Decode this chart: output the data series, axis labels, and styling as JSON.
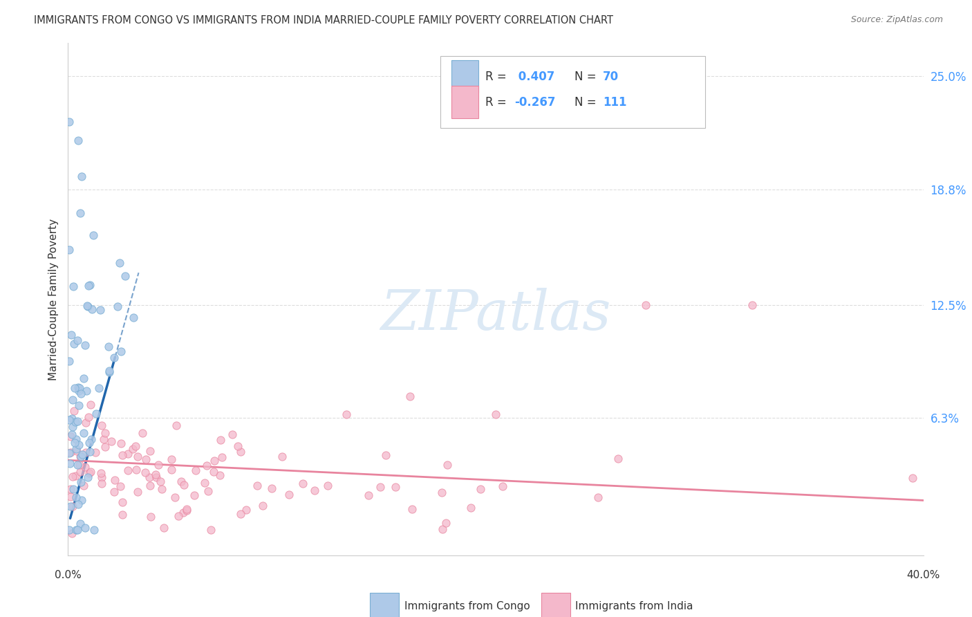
{
  "title": "IMMIGRANTS FROM CONGO VS IMMIGRANTS FROM INDIA MARRIED-COUPLE FAMILY POVERTY CORRELATION CHART",
  "source": "Source: ZipAtlas.com",
  "ylabel": "Married-Couple Family Poverty",
  "ytick_labels": [
    "25.0%",
    "18.8%",
    "12.5%",
    "6.3%"
  ],
  "ytick_values": [
    0.25,
    0.188,
    0.125,
    0.063
  ],
  "xlim": [
    0.0,
    0.4
  ],
  "ylim": [
    -0.012,
    0.268
  ],
  "congo_color": "#aec9e8",
  "congo_edge_color": "#7aafd4",
  "india_color": "#f4b8cb",
  "india_edge_color": "#e8849e",
  "congo_trend_color": "#2166ac",
  "india_trend_color": "#e8849e",
  "R_congo": 0.407,
  "N_congo": 70,
  "R_india": -0.267,
  "N_india": 111,
  "legend_label_congo": "Immigrants from Congo",
  "legend_label_india": "Immigrants from India",
  "watermark": "ZIPatlas",
  "background_color": "#ffffff",
  "grid_color": "#dddddd",
  "axis_color": "#cccccc",
  "label_color": "#4499ff",
  "text_color": "#333333"
}
